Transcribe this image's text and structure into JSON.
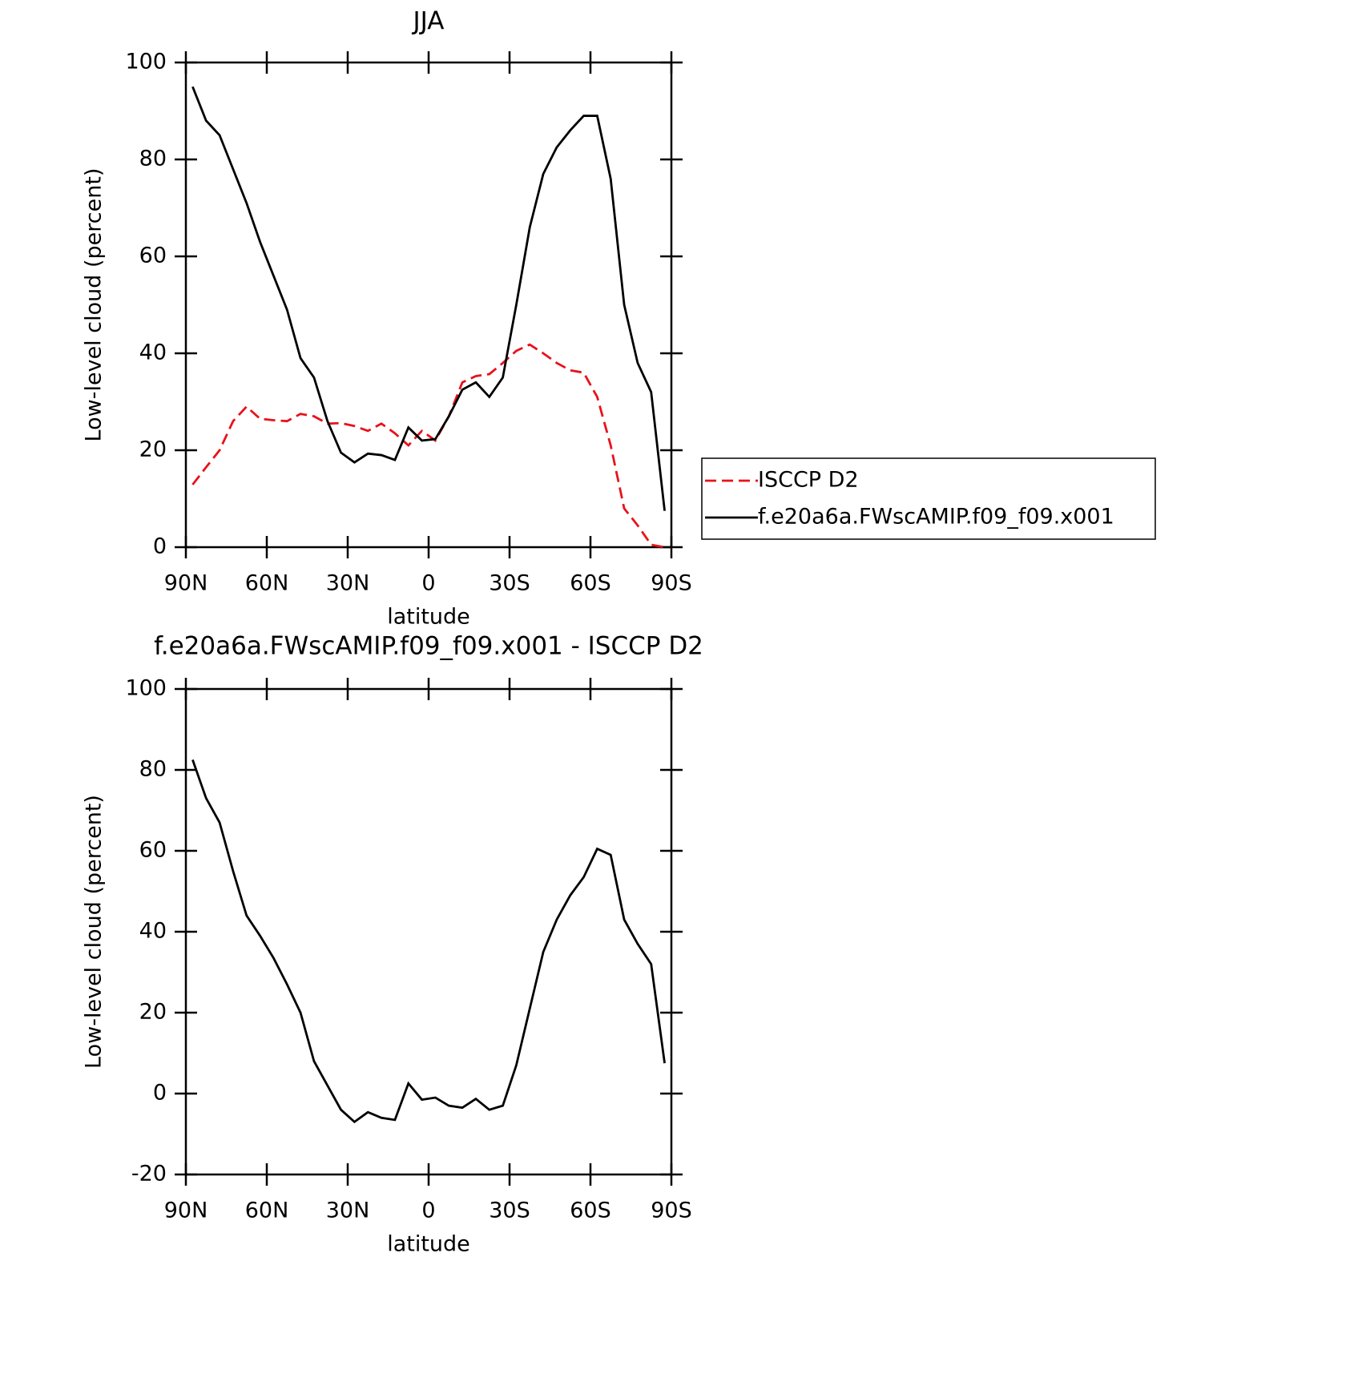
{
  "chart_data": [
    {
      "type": "line",
      "title": "JJA",
      "xlabel": "latitude",
      "ylabel": "Low-level cloud (percent)",
      "x": [
        87.5,
        82.5,
        77.5,
        72.5,
        67.5,
        62.5,
        57.5,
        52.5,
        47.5,
        42.5,
        37.5,
        32.5,
        27.5,
        22.5,
        17.5,
        12.5,
        7.5,
        2.5,
        -2.5,
        -7.5,
        -12.5,
        -17.5,
        -22.5,
        -27.5,
        -32.5,
        -37.5,
        -42.5,
        -47.5,
        -52.5,
        -57.5,
        -62.5,
        -67.5,
        -72.5,
        -77.5,
        -82.5,
        -87.5
      ],
      "series": [
        {
          "name": "ISCCP D2",
          "color": "#e8121b",
          "linestyle": "dashed",
          "values": [
            12.9,
            16.5,
            20,
            26,
            29,
            26.5,
            26.2,
            26,
            27.5,
            27,
            25.5,
            25.6,
            25,
            24,
            25.5,
            23.5,
            21,
            24,
            22,
            27,
            34,
            35.3,
            35.7,
            38,
            40.5,
            41.8,
            40,
            38,
            36.5,
            36,
            31,
            21,
            8,
            4.5,
            0.5,
            0
          ]
        },
        {
          "name": "f.e20a6a.FWscAMIP.f09_f09.x001",
          "color": "#000000",
          "linestyle": "solid",
          "values": [
            95,
            88,
            85,
            78,
            71,
            63,
            56,
            49,
            39,
            35,
            26,
            19.5,
            17.5,
            19.3,
            19,
            18,
            24.7,
            22,
            22.3,
            27,
            32.5,
            34,
            31,
            35,
            50,
            66,
            77,
            82.5,
            86,
            89,
            89,
            76,
            50,
            38,
            32,
            7.5
          ]
        }
      ],
      "xlim": [
        90,
        -90
      ],
      "xticks": [
        {
          "value": 90,
          "label": "90N"
        },
        {
          "value": 60,
          "label": "60N"
        },
        {
          "value": 30,
          "label": "30N"
        },
        0,
        {
          "value": -30,
          "label": "30S"
        },
        {
          "value": -60,
          "label": "60S"
        },
        {
          "value": -90,
          "label": "90S"
        }
      ],
      "ylim": [
        0,
        100
      ],
      "yticks": [
        0,
        20,
        40,
        60,
        80,
        100
      ],
      "legend": "right"
    },
    {
      "type": "line",
      "title": "f.e20a6a.FWscAMIP.f09_f09.x001 - ISCCP D2",
      "xlabel": "latitude",
      "ylabel": "Low-level cloud (percent)",
      "x": [
        87.5,
        82.5,
        77.5,
        72.5,
        67.5,
        62.5,
        57.5,
        52.5,
        47.5,
        42.5,
        37.5,
        32.5,
        27.5,
        22.5,
        17.5,
        12.5,
        7.5,
        2.5,
        -2.5,
        -7.5,
        -12.5,
        -17.5,
        -22.5,
        -27.5,
        -32.5,
        -37.5,
        -42.5,
        -47.5,
        -52.5,
        -57.5,
        -62.5,
        -67.5,
        -72.5,
        -77.5,
        -82.5,
        -87.5
      ],
      "series": [
        {
          "color": "#000000",
          "linestyle": "solid",
          "values": [
            82.5,
            73,
            67,
            55,
            44,
            39,
            33.5,
            27,
            20,
            8,
            2,
            -4,
            -7,
            -4.6,
            -6,
            -6.5,
            2.5,
            -1.5,
            -1,
            -3,
            -3.5,
            -1.3,
            -4,
            -3,
            7,
            21,
            35,
            43,
            49,
            53.5,
            60.5,
            59,
            43,
            37,
            32,
            7.5
          ]
        }
      ],
      "xlim": [
        90,
        -90
      ],
      "xticks": [
        {
          "value": 90,
          "label": "90N"
        },
        {
          "value": 60,
          "label": "60N"
        },
        {
          "value": 30,
          "label": "30N"
        },
        0,
        {
          "value": -30,
          "label": "30S"
        },
        {
          "value": -60,
          "label": "60S"
        },
        {
          "value": -90,
          "label": "90S"
        }
      ],
      "ylim": [
        -20,
        100
      ],
      "yticks": [
        -20,
        0,
        20,
        40,
        60,
        80,
        100
      ]
    }
  ]
}
